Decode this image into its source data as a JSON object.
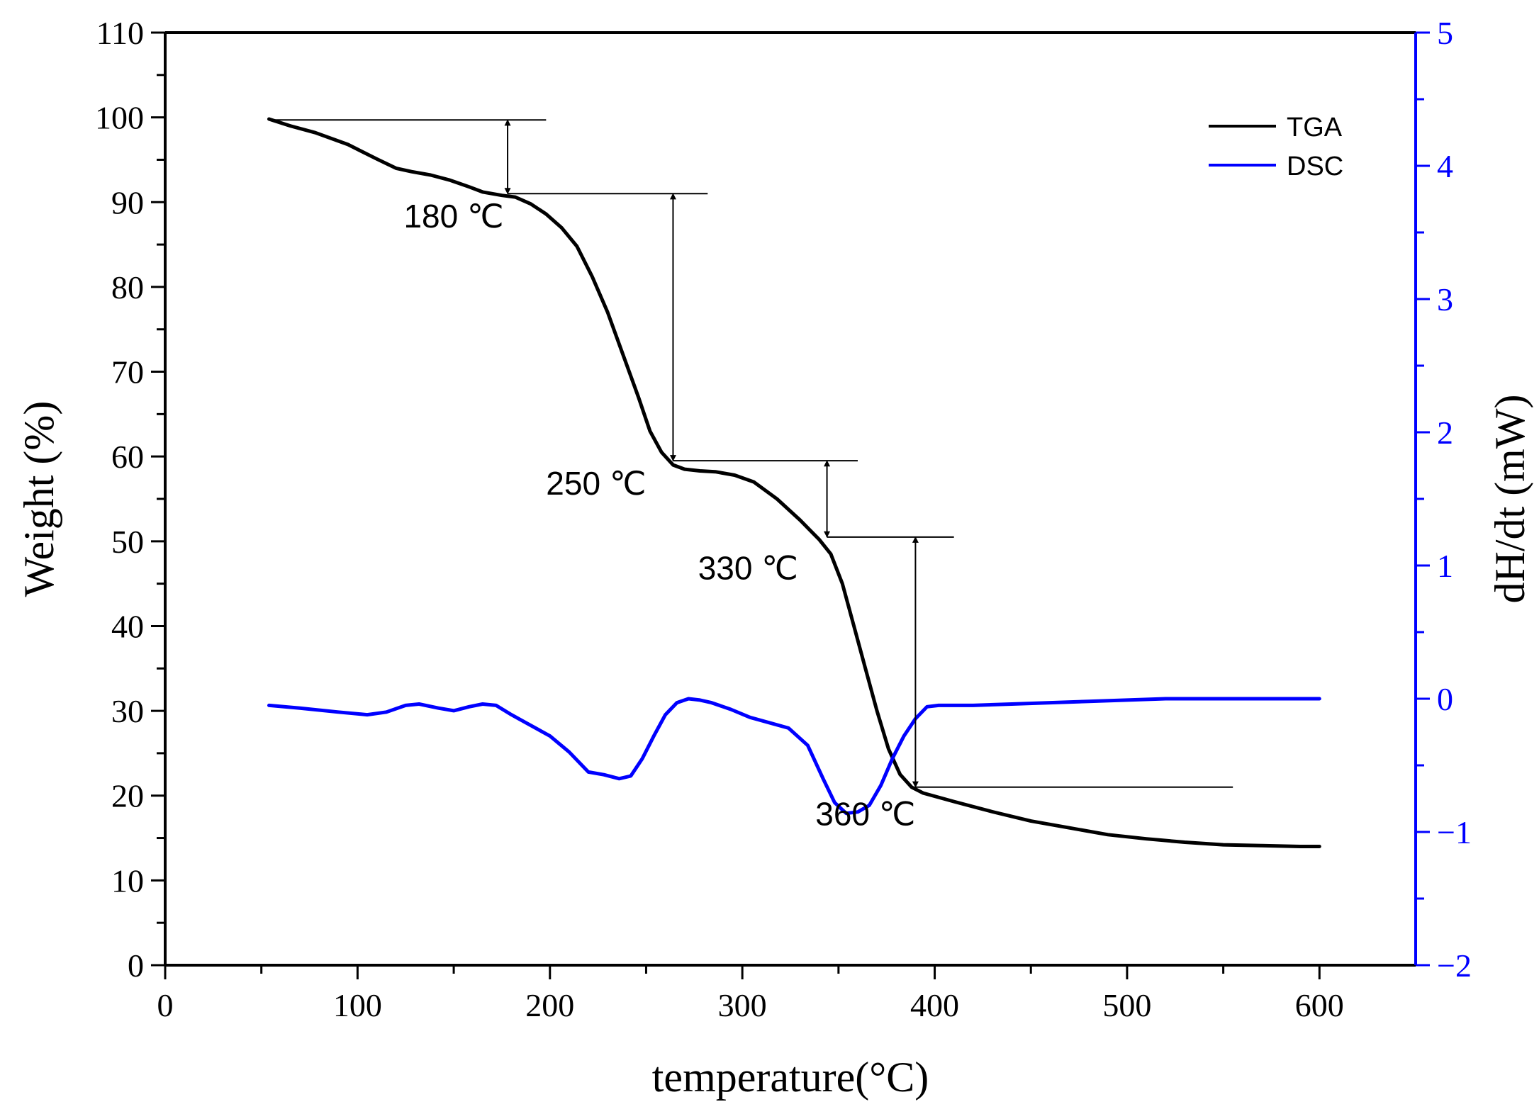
{
  "chart_data": {
    "type": "line",
    "title": "",
    "xlabel": "temperature(°C)",
    "ylabel_left": "Weight (%)",
    "ylabel_right": "dH/dt (mW)",
    "xlim": [
      0,
      650
    ],
    "ylim_left": [
      0,
      110
    ],
    "ylim_right": [
      -2,
      5
    ],
    "x_ticks": [
      0,
      100,
      200,
      300,
      400,
      500,
      600
    ],
    "y_left_ticks": [
      0,
      10,
      20,
      30,
      40,
      50,
      60,
      70,
      80,
      90,
      100,
      110
    ],
    "y_right_ticks": [
      -2,
      -1,
      0,
      1,
      2,
      3,
      4,
      5
    ],
    "x_tick_labels": [
      "0",
      "100",
      "200",
      "300",
      "400",
      "500",
      "600"
    ],
    "y_left_tick_labels": [
      "0",
      "10",
      "20",
      "30",
      "40",
      "50",
      "60",
      "70",
      "80",
      "90",
      "100",
      "110"
    ],
    "y_right_tick_labels": [
      "−2",
      "−1",
      "0",
      "1",
      "2",
      "3",
      "4",
      "5"
    ],
    "colors": {
      "tga": "#000000",
      "dsc": "#0000ff",
      "right_axis": "#0000ff"
    },
    "legend_position": "top-right",
    "series": [
      {
        "name": "TGA",
        "axis": "left",
        "color": "#000000",
        "x": [
          54,
          65,
          78,
          95,
          110,
          120,
          128,
          138,
          148,
          158,
          165,
          175,
          182,
          190,
          198,
          206,
          214,
          222,
          230,
          238,
          246,
          252,
          258,
          264,
          270,
          278,
          286,
          296,
          306,
          318,
          330,
          340,
          346,
          352,
          358,
          364,
          370,
          376,
          382,
          388,
          394,
          410,
          430,
          450,
          470,
          490,
          510,
          530,
          550,
          570,
          590,
          600
        ],
        "values": [
          99.8,
          99.0,
          98.2,
          96.8,
          95.1,
          94.0,
          93.6,
          93.2,
          92.6,
          91.8,
          91.2,
          90.8,
          90.6,
          89.8,
          88.6,
          87.0,
          84.8,
          81.2,
          77.0,
          72.0,
          67.0,
          63.0,
          60.5,
          59.0,
          58.5,
          58.3,
          58.2,
          57.8,
          57.0,
          55.0,
          52.5,
          50.2,
          48.5,
          45.0,
          40.0,
          35.0,
          30.0,
          25.5,
          22.5,
          21.0,
          20.3,
          19.3,
          18.1,
          17.0,
          16.2,
          15.4,
          14.9,
          14.5,
          14.2,
          14.1,
          14.0,
          14.0
        ]
      },
      {
        "name": "DSC",
        "axis": "right",
        "color": "#0000ff",
        "x": [
          54,
          70,
          90,
          105,
          115,
          125,
          132,
          142,
          150,
          158,
          165,
          172,
          180,
          190,
          200,
          210,
          220,
          228,
          236,
          242,
          248,
          254,
          260,
          266,
          272,
          278,
          284,
          294,
          304,
          314,
          324,
          334,
          342,
          348,
          354,
          360,
          366,
          372,
          378,
          384,
          390,
          396,
          402,
          420,
          440,
          460,
          480,
          500,
          520,
          540,
          560,
          580,
          600
        ],
        "values": [
          -0.05,
          -0.07,
          -0.1,
          -0.12,
          -0.1,
          -0.05,
          -0.04,
          -0.07,
          -0.09,
          -0.06,
          -0.04,
          -0.05,
          -0.12,
          -0.2,
          -0.28,
          -0.4,
          -0.55,
          -0.57,
          -0.6,
          -0.58,
          -0.45,
          -0.28,
          -0.12,
          -0.03,
          0.0,
          -0.01,
          -0.03,
          -0.08,
          -0.14,
          -0.18,
          -0.22,
          -0.35,
          -0.6,
          -0.78,
          -0.86,
          -0.85,
          -0.8,
          -0.65,
          -0.45,
          -0.28,
          -0.15,
          -0.06,
          -0.05,
          -0.05,
          -0.04,
          -0.03,
          -0.02,
          -0.01,
          0.0,
          0.0,
          0.0,
          0.0,
          0.0
        ]
      }
    ],
    "annotations": [
      {
        "label": "180 ℃",
        "x": 178,
        "y": 91,
        "text_at": [
          150,
          87
        ]
      },
      {
        "label": "250 ℃",
        "x": 264,
        "y": 59,
        "text_at": [
          224,
          55.5
        ]
      },
      {
        "label": "330 ℃",
        "x": 344,
        "y": 50.3,
        "text_at": [
          303,
          45.5
        ]
      },
      {
        "label": "360 ℃",
        "x": 390,
        "y": 21,
        "text_at": [
          364,
          16.5
        ]
      }
    ],
    "reference_lines": [
      {
        "y": 99.7,
        "x_from": 54,
        "x_to": 198
      },
      {
        "y": 91.0,
        "x_from": 178,
        "x_to": 282
      },
      {
        "y": 59.5,
        "x_from": 264,
        "x_to": 360
      },
      {
        "y": 50.5,
        "x_from": 344,
        "x_to": 410
      },
      {
        "y": 21.0,
        "x_from": 390,
        "x_to": 555
      }
    ],
    "arrows": [
      {
        "x": 178,
        "y_from": 99.7,
        "y_to": 91.0
      },
      {
        "x": 264,
        "y_from": 91.0,
        "y_to": 59.5
      },
      {
        "x": 344,
        "y_from": 59.5,
        "y_to": 50.5
      },
      {
        "x": 390,
        "y_from": 50.5,
        "y_to": 21.0
      }
    ]
  }
}
